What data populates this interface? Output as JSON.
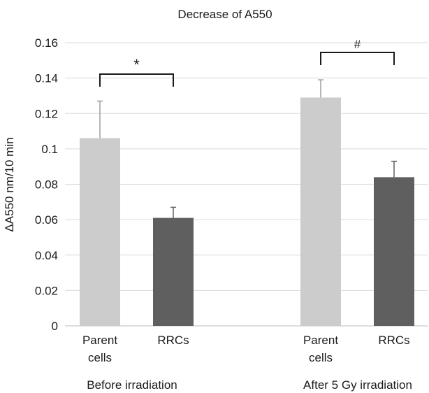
{
  "chart_data": {
    "type": "bar",
    "title": "Decrease of A550",
    "ylabel": "ΔA550 nm/10 min",
    "xlabel": "",
    "ylim": [
      0,
      0.16
    ],
    "yticks": [
      "0",
      "0.02",
      "0.04",
      "0.06",
      "0.08",
      "0.1",
      "0.12",
      "0.14",
      "0.16"
    ],
    "grid": true,
    "groups": [
      {
        "label": "Before irradiation",
        "bars": [
          {
            "label": [
              "Parent",
              "cells"
            ],
            "value": 0.106,
            "error": 0.021,
            "color": "#cccccc"
          },
          {
            "label": [
              "RRCs"
            ],
            "value": 0.061,
            "error": 0.006,
            "color": "#5f5f5f"
          }
        ],
        "significance": "*"
      },
      {
        "label": "After 5 Gy irradiation",
        "bars": [
          {
            "label": [
              "Parent",
              "cells"
            ],
            "value": 0.129,
            "error": 0.01,
            "color": "#cccccc"
          },
          {
            "label": [
              "RRCs"
            ],
            "value": 0.084,
            "error": 0.009,
            "color": "#5f5f5f"
          }
        ],
        "significance": "#"
      }
    ]
  }
}
